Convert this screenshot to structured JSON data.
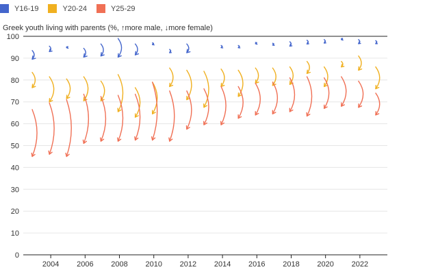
{
  "chart_data": {
    "type": "arrow-plot",
    "title": "",
    "ylabel": "Greek youth living with parents (%, ↑more male, ↓more female)",
    "xlabel": "",
    "ylim": [
      0,
      100
    ],
    "y_ticks": [
      0,
      10,
      20,
      30,
      40,
      50,
      60,
      70,
      80,
      90,
      100
    ],
    "x_range": [
      2002.4,
      2023.6
    ],
    "x_ticks": [
      "2004",
      "2006",
      "2008",
      "2010",
      "2012",
      "2014",
      "2016",
      "2018",
      "2020",
      "2022"
    ],
    "grid": true,
    "legend_position": "top-left",
    "arrow_note": "each arrow runs from male share (start) to female share (arrowhead)",
    "years": [
      2003,
      2004,
      2005,
      2006,
      2007,
      2008,
      2009,
      2010,
      2011,
      2012,
      2013,
      2014,
      2015,
      2016,
      2017,
      2018,
      2019,
      2020,
      2021,
      2022,
      2023
    ],
    "series": [
      {
        "name": "Y16-19",
        "color": "#4466cc",
        "male": [
          93.5,
          95.5,
          95.2,
          94.5,
          96.5,
          99,
          96.5,
          97,
          94,
          96.5,
          null,
          95.8,
          95.8,
          97.2,
          96.8,
          97.5,
          98.2,
          98.5,
          99.0,
          98.5,
          98.0
        ],
        "female": [
          89.5,
          93.0,
          94.8,
          90.5,
          91.0,
          90.5,
          91.5,
          96.2,
          92.5,
          92.5,
          null,
          94.8,
          94.8,
          96.6,
          96.0,
          95.5,
          96.5,
          96.9,
          98.5,
          96.6,
          96.6
        ]
      },
      {
        "name": "Y20-24",
        "color": "#f0b020",
        "male": [
          83.5,
          81.5,
          80.5,
          81.5,
          79.5,
          82.5,
          76.5,
          79.0,
          85.5,
          84.5,
          84.0,
          85.0,
          84.5,
          85.5,
          85.5,
          86.0,
          88.5,
          86.0,
          88.5,
          91.0,
          86.0
        ],
        "female": [
          76.5,
          70.0,
          71.5,
          70.5,
          70.5,
          65.5,
          63.0,
          64.5,
          77.0,
          71.0,
          67.5,
          77.0,
          72.5,
          78.5,
          77.5,
          78.0,
          83.0,
          77.0,
          86.0,
          84.5,
          76.0
        ]
      },
      {
        "name": "Y25-29",
        "color": "#f07055",
        "male": [
          66.5,
          69.5,
          71.0,
          73.5,
          72.5,
          73.0,
          73.5,
          79.0,
          75.0,
          75.0,
          76.0,
          77.0,
          77.0,
          78.5,
          79.0,
          81.0,
          81.5,
          81.0,
          81.5,
          79.5,
          74.0
        ],
        "female": [
          45.0,
          46.0,
          45.0,
          51.0,
          52.0,
          52.0,
          52.5,
          52.5,
          52.0,
          57.5,
          59.5,
          59.5,
          62.5,
          64.0,
          64.5,
          65.5,
          63.5,
          67.0,
          68.0,
          67.5,
          64.0
        ]
      }
    ]
  }
}
